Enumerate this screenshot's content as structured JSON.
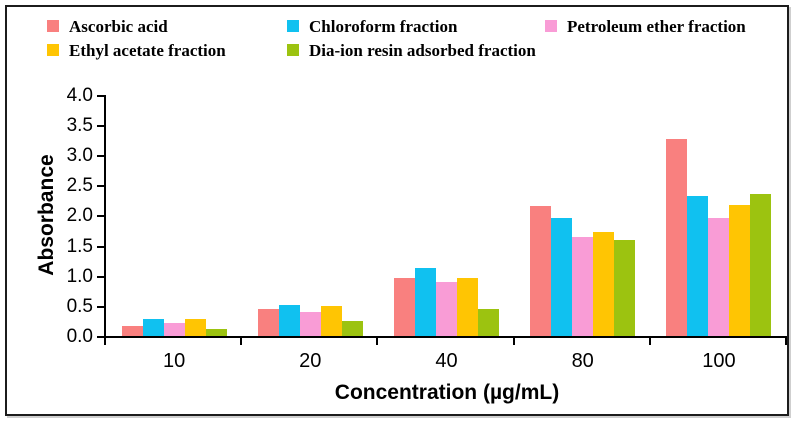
{
  "chart_data": {
    "type": "bar",
    "title": "",
    "xlabel": "Concentration (µg/mL)",
    "ylabel": "Absorbance",
    "ylim": [
      0,
      4
    ],
    "ytick_step": 0.5,
    "grid": false,
    "legend_position": "top-left, two rows",
    "categories": [
      "10",
      "20",
      "40",
      "80",
      "100"
    ],
    "series": [
      {
        "name": "Ascorbic acid",
        "color": "#F9807F",
        "values": [
          0.17,
          0.45,
          0.97,
          2.16,
          3.27
        ]
      },
      {
        "name": "Chloroform fraction",
        "color": "#10C1F0",
        "values": [
          0.28,
          0.52,
          1.12,
          1.95,
          2.32
        ]
      },
      {
        "name": "Petroleum ether fraction",
        "color": "#F99CD6",
        "values": [
          0.22,
          0.4,
          0.89,
          1.65,
          1.96
        ]
      },
      {
        "name": "Ethyl acetate fraction",
        "color": "#FFC503",
        "values": [
          0.28,
          0.5,
          0.97,
          1.72,
          2.18
        ]
      },
      {
        "name": "Dia-ion resin adsorbed fraction",
        "color": "#9CC310",
        "values": [
          0.12,
          0.25,
          0.45,
          1.6,
          2.35
        ]
      }
    ]
  },
  "axis": {
    "y_tick_labels": [
      "0.0",
      "0.5",
      "1.0",
      "1.5",
      "2.0",
      "2.5",
      "3.0",
      "3.5",
      "4.0"
    ],
    "x_tick_labels": [
      "10",
      "20",
      "40",
      "80",
      "100"
    ]
  }
}
